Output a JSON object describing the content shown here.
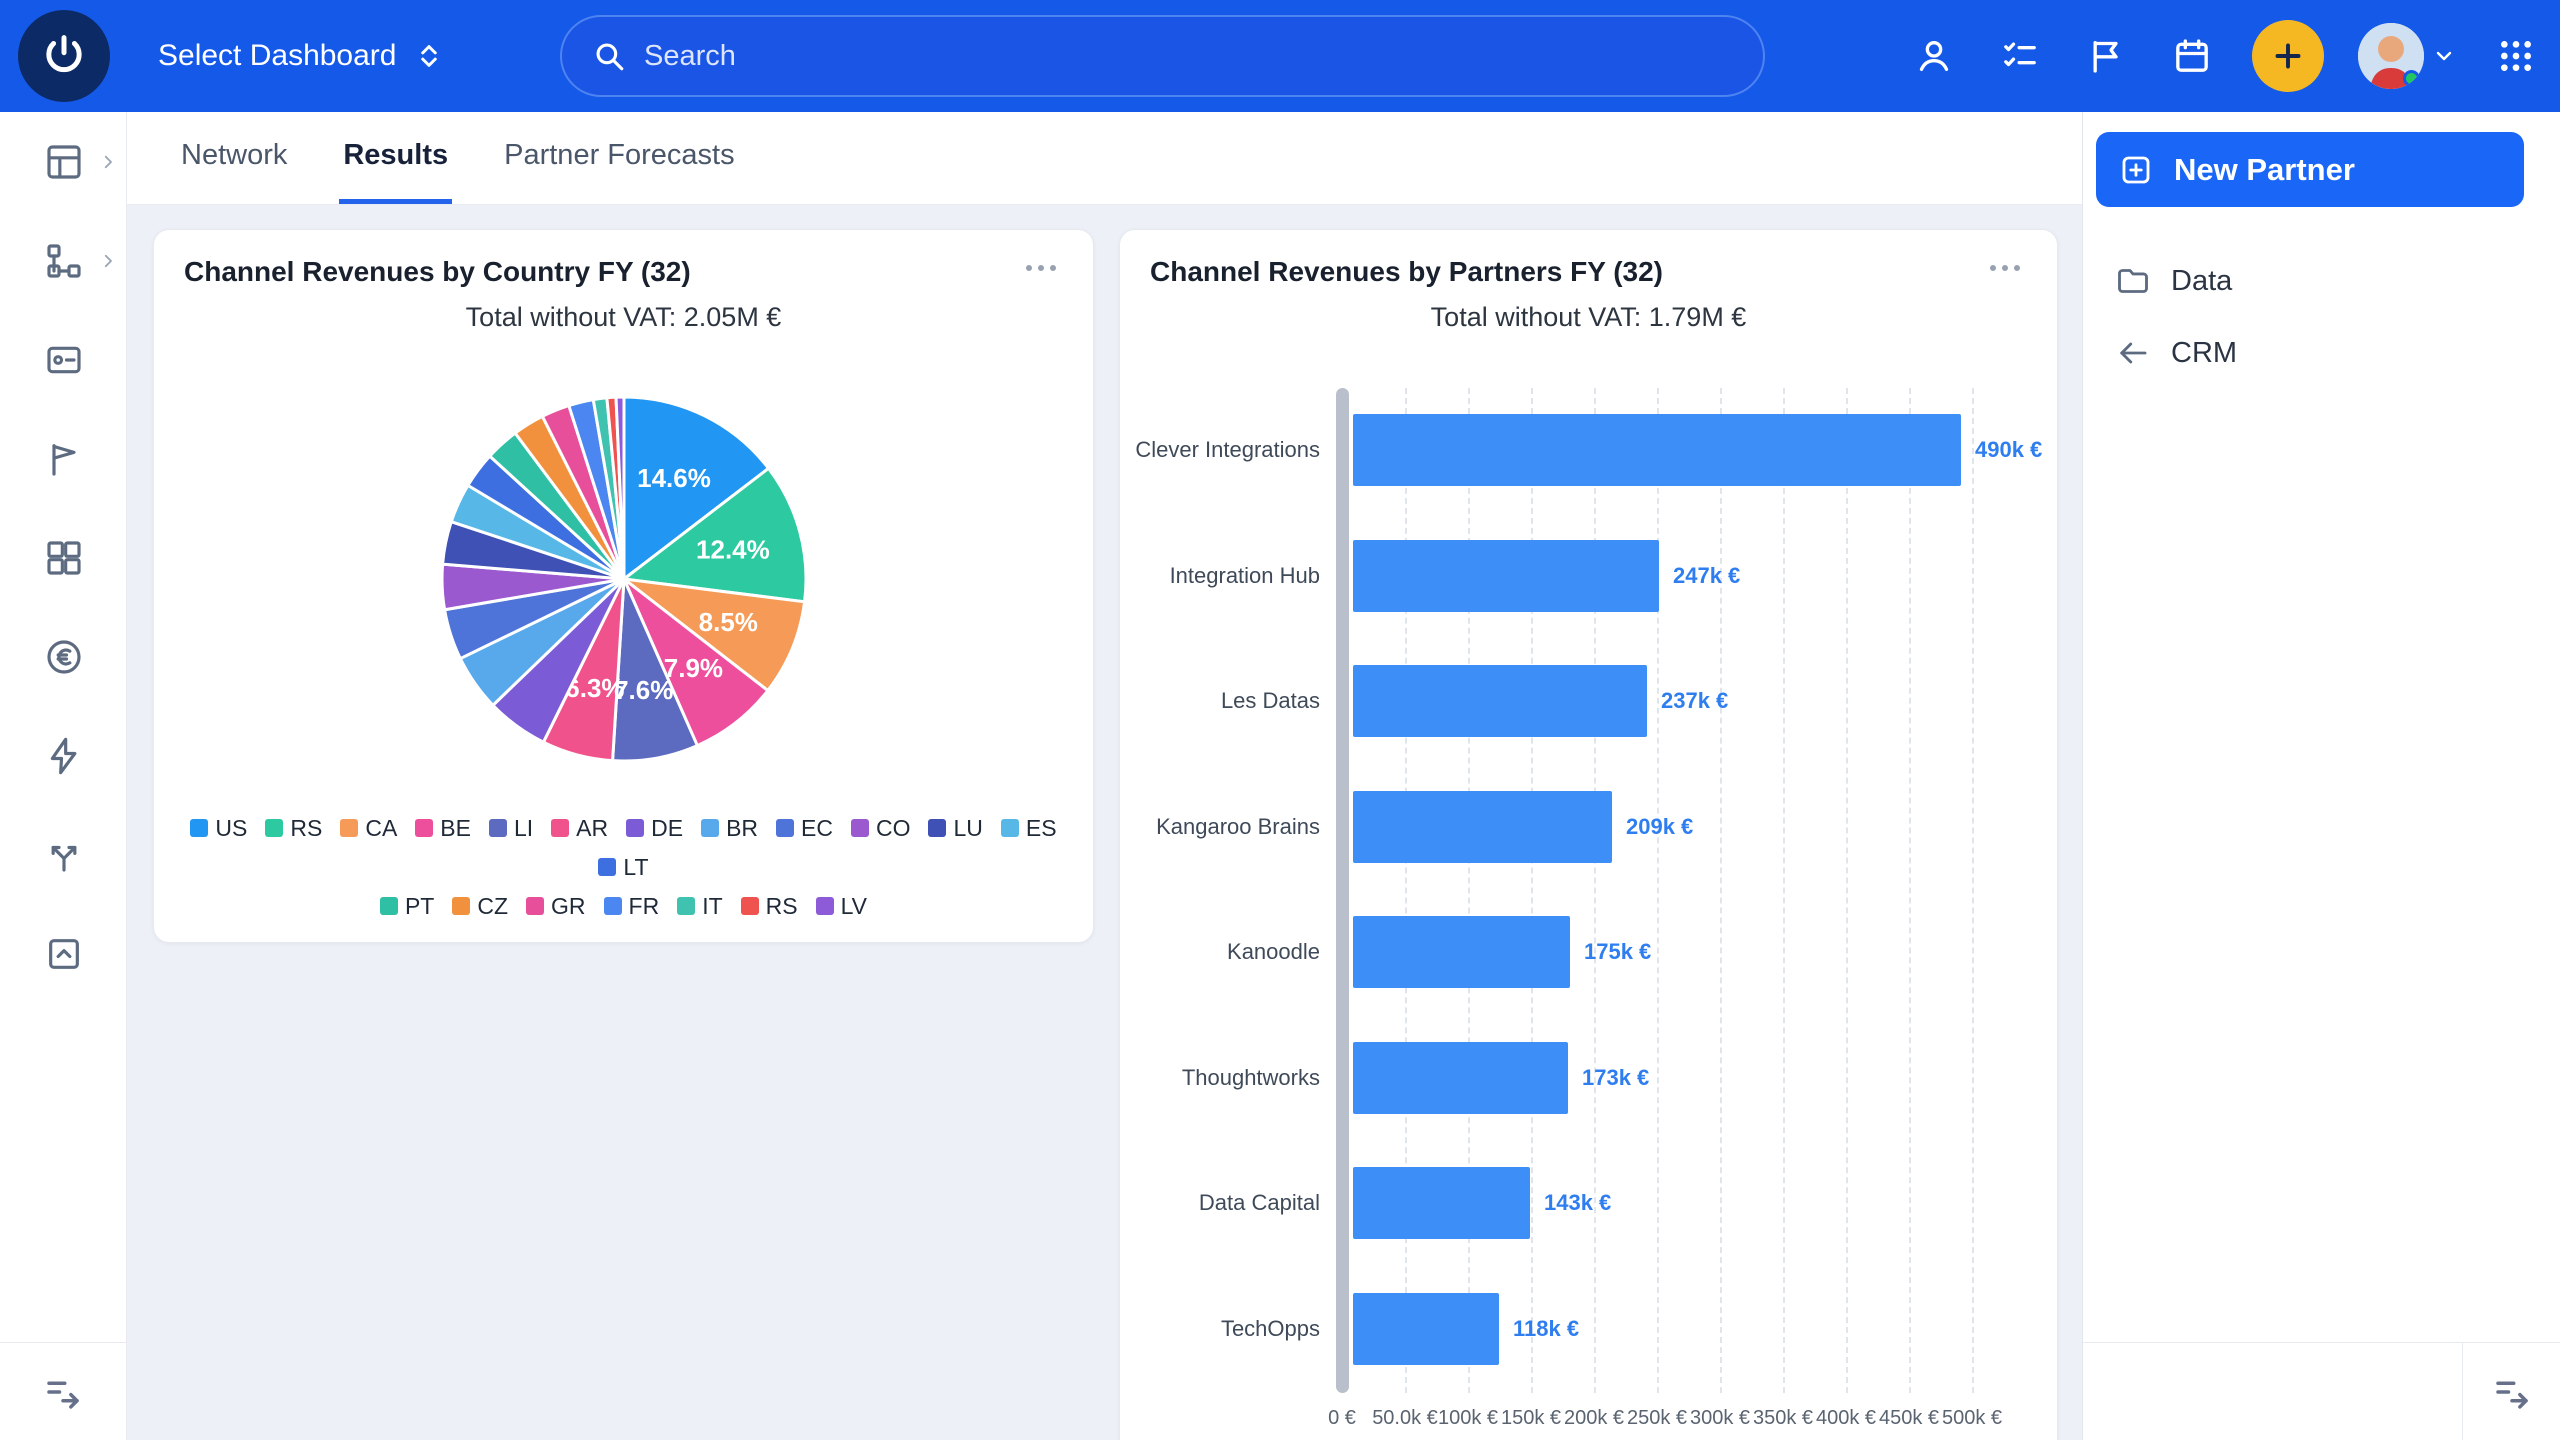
{
  "topbar": {
    "dashboard_selector": "Select Dashboard",
    "search_placeholder": "Search",
    "icons": [
      "user-icon",
      "tasks-icon",
      "flag-icon",
      "calendar-icon",
      "add-icon",
      "avatar",
      "apps-grid-icon"
    ],
    "colors": {
      "bar": "#1559E9",
      "add_button": "#F5B823",
      "status_dot": "#22C55E"
    }
  },
  "tabs": [
    {
      "label": "Network",
      "active": false
    },
    {
      "label": "Results",
      "active": true
    },
    {
      "label": "Partner Forecasts",
      "active": false
    }
  ],
  "right_panel": {
    "new_partner_label": "New Partner",
    "items": [
      {
        "label": "Data",
        "icon": "folder-icon"
      },
      {
        "label": "CRM",
        "icon": "arrow-left-icon"
      }
    ]
  },
  "chart_data": [
    {
      "type": "pie",
      "title": "Channel Revenues by Country FY (32)",
      "subtitle": "Total without VAT: 2.05M €",
      "labels": [
        "US",
        "RS",
        "CA",
        "BE",
        "LI",
        "AR",
        "DE",
        "BR",
        "EC",
        "CO",
        "LU",
        "ES",
        "LT",
        "PT",
        "CZ",
        "GR",
        "FR",
        "IT",
        "RS",
        "LV"
      ],
      "values": [
        14.6,
        12.4,
        8.5,
        7.9,
        7.6,
        6.3,
        5.5,
        5.0,
        4.5,
        4.0,
        3.8,
        3.5,
        3.2,
        3.0,
        2.8,
        2.5,
        2.2,
        1.2,
        0.8,
        0.7
      ],
      "colors": [
        "#2196F3",
        "#2DC9A0",
        "#F59B57",
        "#ED4F9D",
        "#5C6BC0",
        "#F0538C",
        "#7C5CD6",
        "#58A8EC",
        "#4F74D9",
        "#9B59D0",
        "#3F51B5",
        "#57B8E8",
        "#3D6FE0",
        "#2EBFA5",
        "#F2913D",
        "#E84F9B",
        "#4C86F0",
        "#3FC2B0",
        "#EF5350",
        "#8E5BD8"
      ],
      "label_threshold_pct": 6,
      "legend_position": "bottom",
      "value_unit": "%"
    },
    {
      "type": "bar",
      "orientation": "horizontal",
      "title": "Channel Revenues by Partners FY (32)",
      "subtitle": "Total without VAT: 1.79M €",
      "categories": [
        "Clever Integrations",
        "Integration Hub",
        "Les Datas",
        "Kangaroo Brains",
        "Kanoodle",
        "Thoughtworks",
        "Data Capital",
        "TechOpps"
      ],
      "values": [
        490,
        247,
        237,
        209,
        175,
        173,
        143,
        118
      ],
      "value_labels": [
        "490k €",
        "247k €",
        "237k €",
        "209k €",
        "175k €",
        "173k €",
        "143k €",
        "118k €"
      ],
      "x_ticks": [
        "0 €",
        "50.0k €",
        "100k €",
        "150k €",
        "200k €",
        "250k €",
        "300k €",
        "350k €",
        "400k €",
        "450k €",
        "500k €"
      ],
      "xlim": [
        0,
        500
      ],
      "grid": true,
      "bar_color": "#3E8EF7"
    }
  ]
}
